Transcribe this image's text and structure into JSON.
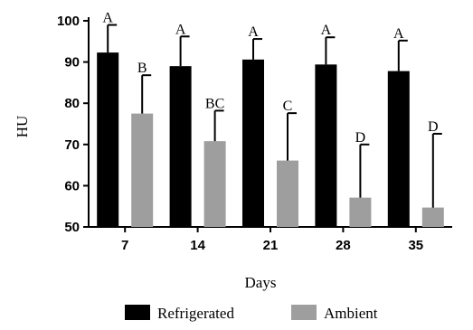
{
  "chart_data": {
    "type": "bar",
    "title": "",
    "xlabel": "Days",
    "ylabel": "HU",
    "ylim": [
      50,
      100
    ],
    "yticks": [
      50,
      60,
      70,
      80,
      90,
      100
    ],
    "categories": [
      "7",
      "14",
      "21",
      "28",
      "35"
    ],
    "series": [
      {
        "name": "Refrigerated",
        "color": "#000000",
        "values": [
          92.3,
          89.0,
          90.6,
          89.4,
          87.8
        ],
        "error": [
          6.7,
          7.2,
          5.0,
          6.6,
          7.4
        ],
        "letters": [
          "A",
          "A",
          "A",
          "A",
          "A"
        ]
      },
      {
        "name": "Ambient",
        "color": "#9e9e9e",
        "values": [
          77.5,
          70.8,
          66.1,
          57.1,
          54.7
        ],
        "error": [
          9.3,
          7.4,
          11.5,
          12.9,
          17.9
        ],
        "letters": [
          "B",
          "BC",
          "C",
          "D",
          "D"
        ]
      }
    ],
    "grid": false,
    "legend": "bottom"
  }
}
